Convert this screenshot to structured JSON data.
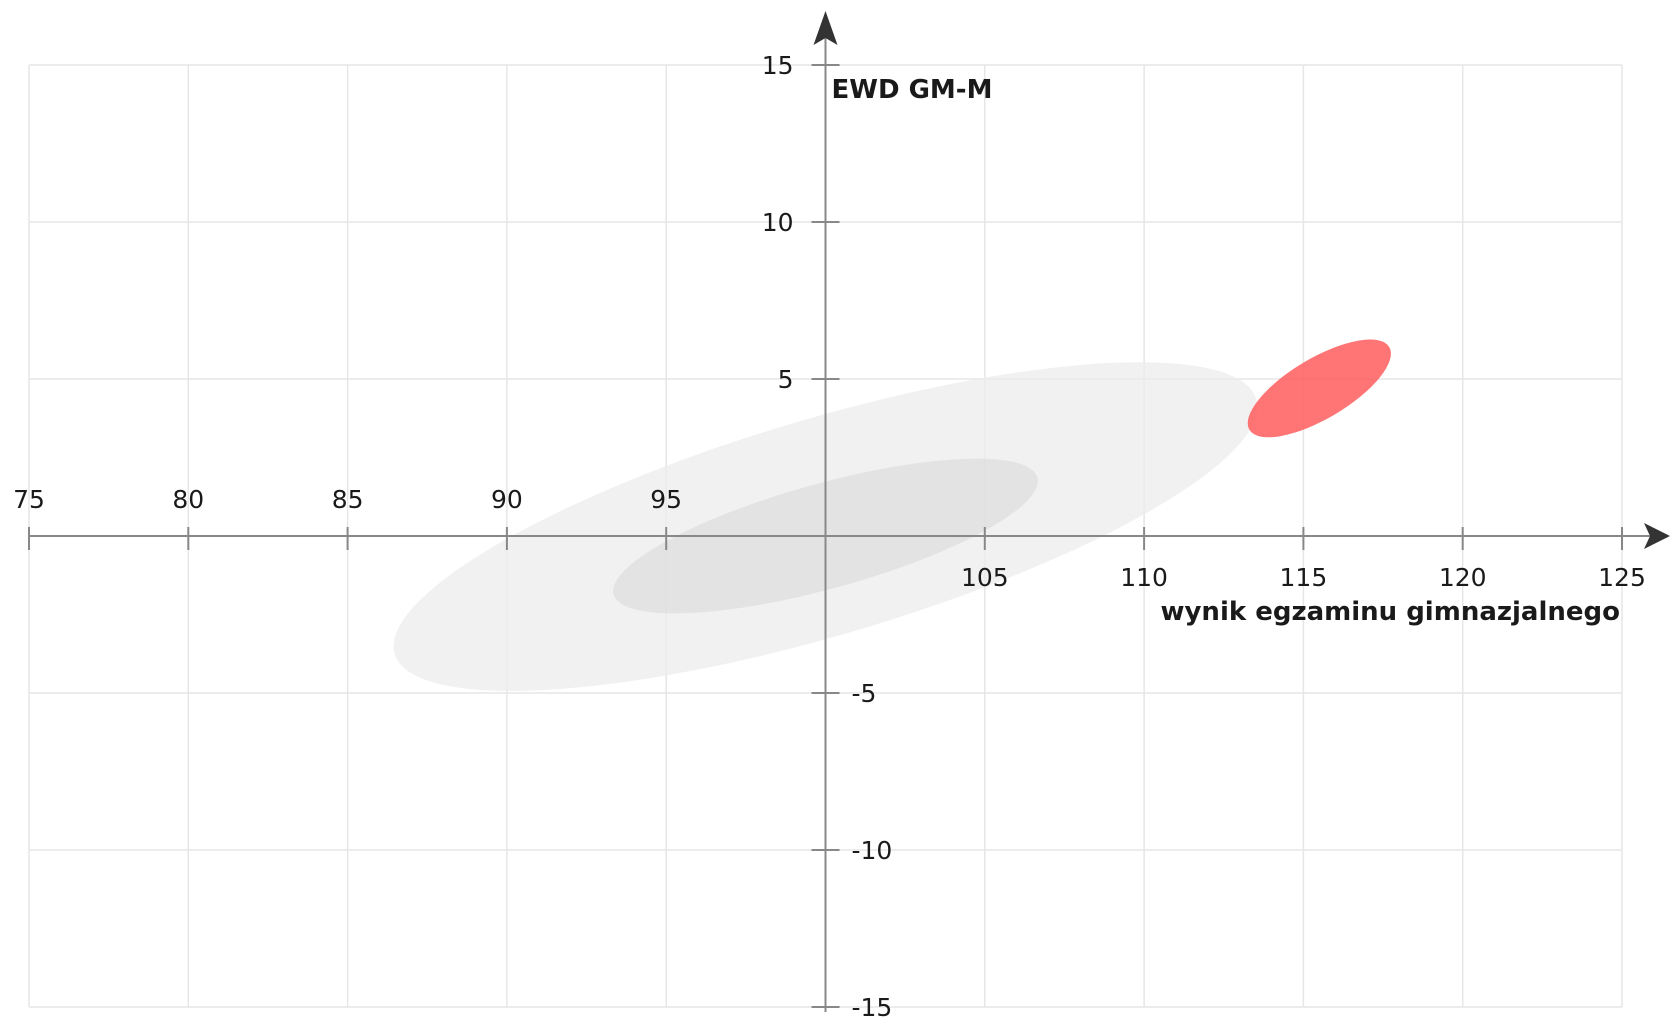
{
  "chart_data": {
    "type": "scatter",
    "xlabel": "wynik egzaminu gimnazjalnego",
    "ylabel": "EWD GM-M",
    "xlim": [
      75,
      125
    ],
    "ylim": [
      -15,
      15
    ],
    "x_ticks": [
      75,
      80,
      85,
      90,
      95,
      105,
      110,
      115,
      120,
      125
    ],
    "y_ticks": [
      15,
      10,
      5,
      -5,
      -10,
      -15
    ],
    "grid": true,
    "axes_cross_at": [
      100,
      0
    ],
    "series": [
      {
        "shape": "ellipse",
        "color": "#ececec",
        "opacity": 0.75,
        "center": [
          100,
          0.3
        ],
        "rx": 14.1,
        "ry": 3.4,
        "slope": 0.3
      },
      {
        "shape": "ellipse",
        "color": "#dddddd",
        "opacity": 0.7,
        "center": [
          100,
          0
        ],
        "rx": 6.9,
        "ry": 1.65,
        "slope": 0.28
      },
      {
        "shape": "ellipse",
        "color": "#ff5c5c",
        "opacity": 0.85,
        "center": [
          115.5,
          4.7
        ],
        "rx": 2.55,
        "ry": 0.95,
        "slope": 0.6
      }
    ]
  },
  "colors": {
    "axis": "#888888",
    "grid": "#e6e6e6",
    "text": "#1a1a1a"
  }
}
